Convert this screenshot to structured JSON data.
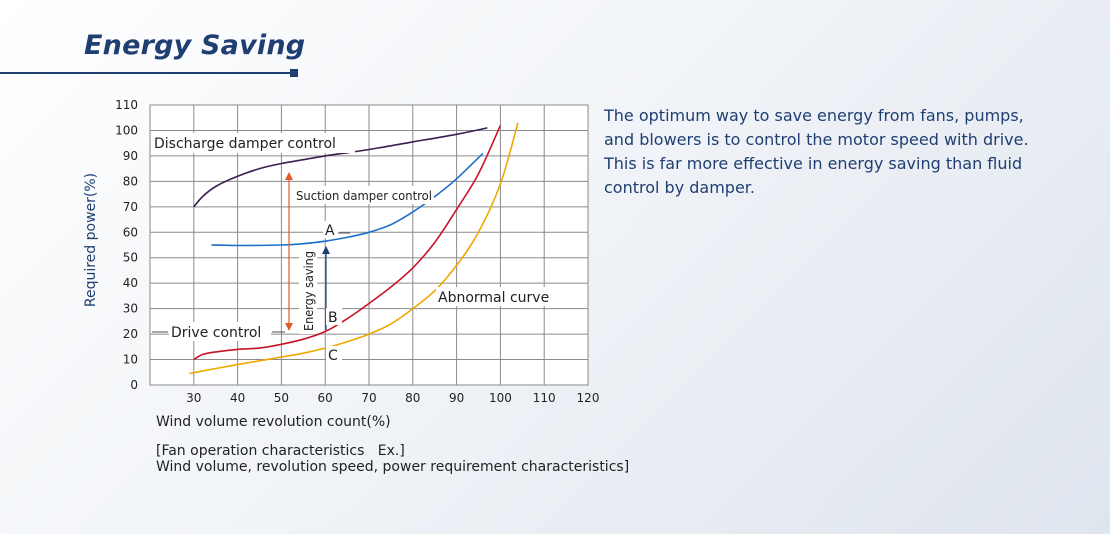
{
  "header": {
    "title": "Energy Saving"
  },
  "description": [
    "The optimum way to save energy from fans, pumps,",
    "and blowers is to control the motor speed with drive.",
    "This is far more effective in energy saving than fluid",
    "control by damper."
  ],
  "caption": [
    "[Fan operation characteristics   Ex.]",
    "Wind volume, revolution speed, power requirement characteristics]"
  ],
  "colors": {
    "title": "#1f3f73",
    "discharge": "#3a1f4f",
    "suction": "#1a70c8",
    "drive": "#c81428",
    "abnormal": "#f0a800",
    "grid": "#8a8a8a",
    "energy_arrow": "#e05a2a",
    "ab_arrow": "#1f3f73"
  },
  "chart_data": {
    "type": "line",
    "xlabel": "Wind volume revolution count(%)",
    "ylabel": "Required power(%)",
    "xlim": [
      20,
      120
    ],
    "ylim": [
      0,
      110
    ],
    "x_ticks": [
      30,
      40,
      50,
      60,
      70,
      80,
      90,
      100,
      110,
      120
    ],
    "y_ticks": [
      0,
      10,
      20,
      30,
      40,
      50,
      60,
      70,
      80,
      90,
      100,
      110
    ],
    "grid": true,
    "series": [
      {
        "name": "Discharge damper control",
        "color": "#3a1f4f",
        "x": [
          30,
          32,
          35,
          40,
          45,
          50,
          55,
          60,
          70,
          80,
          90,
          97
        ],
        "y": [
          70,
          74,
          78,
          82,
          85,
          87,
          88.5,
          90,
          92.5,
          95.5,
          98.5,
          101
        ]
      },
      {
        "name": "Suction damper control",
        "color": "#1a70c8",
        "x": [
          34,
          40,
          50,
          55,
          60,
          65,
          70,
          75,
          80,
          85,
          90,
          96
        ],
        "y": [
          55,
          54.8,
          55,
          55.5,
          56.5,
          58,
          60,
          63,
          68,
          74,
          81,
          91
        ]
      },
      {
        "name": "Drive control",
        "color": "#c81428",
        "x": [
          30,
          32,
          35,
          40,
          45,
          50,
          55,
          60,
          65,
          70,
          75,
          80,
          85,
          90,
          95,
          100
        ],
        "y": [
          10,
          12,
          13,
          14,
          14.5,
          16,
          18,
          21,
          26,
          32,
          38.5,
          46,
          56,
          69,
          83,
          102
        ]
      },
      {
        "name": "Abnormal curve",
        "color": "#f0a800",
        "x": [
          29,
          32,
          35,
          40,
          45,
          50,
          55,
          60,
          65,
          70,
          75,
          80,
          85,
          90,
          95,
          100,
          104
        ],
        "y": [
          4.5,
          5.5,
          6.5,
          8,
          9.5,
          11,
          12.5,
          14.5,
          17,
          20,
          24,
          30,
          37,
          47,
          60,
          79,
          103
        ]
      }
    ],
    "annotations": [
      {
        "text": "Discharge damper control"
      },
      {
        "text": "Suction damper control"
      },
      {
        "text": "Drive control"
      },
      {
        "text": "Abnormal curve"
      },
      {
        "text": "Energy saving"
      },
      {
        "text": "A"
      },
      {
        "text": "B"
      },
      {
        "text": "C"
      }
    ]
  }
}
